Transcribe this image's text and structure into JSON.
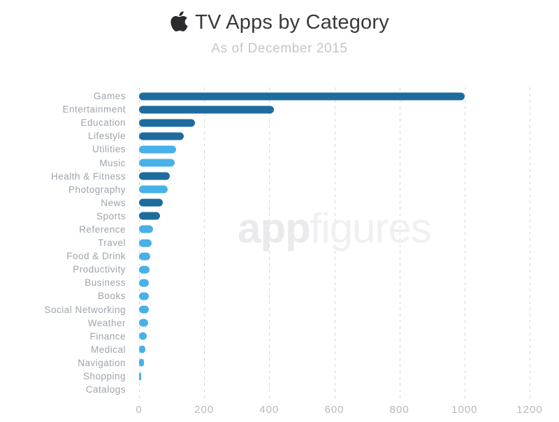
{
  "header": {
    "title": "TV Apps by Category",
    "subtitle": "As of December 2015"
  },
  "watermark": {
    "part1": "app",
    "part2": "figures"
  },
  "colors": {
    "background": "#FFFFFF",
    "bar_dark_blue": "#1E6C9D",
    "bar_light_blue": "#47B1E8",
    "title_text": "#39393B",
    "subtitle_text": "#C4C6CC",
    "category_label_text": "#9EA4AB",
    "tick_label_text": "#B6B9BE",
    "gridline": "#D5D6D8",
    "watermark_app": "#EAEAEC",
    "watermark_figures": "#F0F0F2",
    "apple_logo": "#2B2B2D"
  },
  "chart_data": {
    "type": "bar",
    "orientation": "horizontal",
    "title": "TV Apps by Category",
    "subtitle": "As of December 2015",
    "xlabel": "",
    "ylabel": "",
    "xlim": [
      0,
      1200
    ],
    "x_ticks": [
      0,
      200,
      400,
      600,
      800,
      1000,
      1200
    ],
    "grid": "vertical dashed gridlines",
    "legend": "none",
    "categories": [
      "Games",
      "Entertainment",
      "Education",
      "Lifestyle",
      "Utilities",
      "Music",
      "Health & Fitness",
      "Photography",
      "News",
      "Sports",
      "Reference",
      "Travel",
      "Food & Drink",
      "Productivity",
      "Business",
      "Books",
      "Social Networking",
      "Weather",
      "Finance",
      "Medical",
      "Navigation",
      "Shopping",
      "Catalogs"
    ],
    "values": [
      1000,
      415,
      172,
      138,
      113,
      110,
      95,
      89,
      73,
      65,
      42,
      39,
      35,
      33,
      31,
      30,
      29,
      27,
      24,
      20,
      16,
      7,
      0
    ],
    "bar_colors": [
      "#1E6C9D",
      "#1E6C9D",
      "#1E6C9D",
      "#1E6C9D",
      "#47B1E8",
      "#47B1E8",
      "#1E6C9D",
      "#47B1E8",
      "#1E6C9D",
      "#1E6C9D",
      "#47B1E8",
      "#47B1E8",
      "#47B1E8",
      "#47B1E8",
      "#47B1E8",
      "#47B1E8",
      "#47B1E8",
      "#47B1E8",
      "#47B1E8",
      "#47B1E8",
      "#47B1E8",
      "#47B1E8",
      "#47B1E8"
    ]
  }
}
